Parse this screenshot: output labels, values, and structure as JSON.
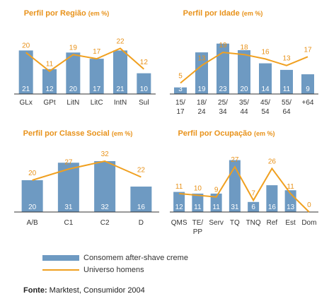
{
  "legend": {
    "bar_label": "Consomem after-shave creme",
    "line_label": "Universo homens"
  },
  "source": {
    "label": "Fonte:",
    "text": "Marktest, Consumidor 2004"
  },
  "colors": {
    "bar": "#6e9ac2",
    "line": "#f0a020",
    "title": "#e8921a"
  },
  "chart_data": [
    {
      "id": "regiao",
      "type": "bar",
      "title": "Perfil por Região",
      "unit": "(em %)",
      "categories": [
        [
          "GLx"
        ],
        [
          "GPt"
        ],
        [
          "LitN"
        ],
        [
          "LitC"
        ],
        [
          "IntN"
        ],
        [
          "Sul"
        ]
      ],
      "series": [
        {
          "name": "Consomem after-shave creme",
          "type": "bar",
          "values": [
            21,
            12,
            20,
            17,
            21,
            10
          ]
        },
        {
          "name": "Universo homens",
          "type": "line",
          "values": [
            20,
            11,
            19,
            17,
            22,
            12
          ]
        }
      ],
      "ylim": [
        0,
        30
      ]
    },
    {
      "id": "idade",
      "type": "bar",
      "title": "Perfil por Idade",
      "unit": "(em %)",
      "categories": [
        [
          "15/",
          "17"
        ],
        [
          "18/",
          "24"
        ],
        [
          "25/",
          "34"
        ],
        [
          "35/",
          "44"
        ],
        [
          "45/",
          "54"
        ],
        [
          "55/",
          "64"
        ],
        [
          "+64"
        ]
      ],
      "series": [
        {
          "name": "Consomem after-shave creme",
          "type": "bar",
          "values": [
            3,
            19,
            23,
            20,
            14,
            11,
            9
          ]
        },
        {
          "name": "Universo homens",
          "type": "line",
          "values": [
            5,
            13,
            19,
            18,
            16,
            13,
            17
          ]
        }
      ],
      "ylim": [
        0,
        30
      ]
    },
    {
      "id": "classe",
      "type": "bar",
      "title": "Perfil por Classe Social",
      "unit": "(em %)",
      "categories": [
        [
          "A/B"
        ],
        [
          "C1"
        ],
        [
          "C2"
        ],
        [
          "D"
        ]
      ],
      "series": [
        {
          "name": "Consomem after-shave creme",
          "type": "bar",
          "values": [
            20,
            31,
            32,
            16
          ]
        },
        {
          "name": "Universo homens",
          "type": "line",
          "values": [
            20,
            27,
            32,
            22
          ]
        }
      ],
      "ylim": [
        0,
        40
      ]
    },
    {
      "id": "ocupacao",
      "type": "bar",
      "title": "Perfil por Ocupação",
      "unit": "(em %)",
      "categories": [
        [
          "QMS"
        ],
        [
          "TE/",
          "PP"
        ],
        [
          "Serv"
        ],
        [
          "TQ"
        ],
        [
          "TNQ"
        ],
        [
          "Ref"
        ],
        [
          "Est"
        ],
        [
          "Dom"
        ]
      ],
      "series": [
        {
          "name": "Consomem after-shave creme",
          "type": "bar",
          "values": [
            12,
            11,
            11,
            31,
            6,
            16,
            13,
            0
          ]
        },
        {
          "name": "Universo homens",
          "type": "line",
          "values": [
            11,
            10,
            9,
            27,
            7,
            26,
            11,
            0
          ]
        }
      ],
      "ylim": [
        0,
        38
      ]
    }
  ]
}
